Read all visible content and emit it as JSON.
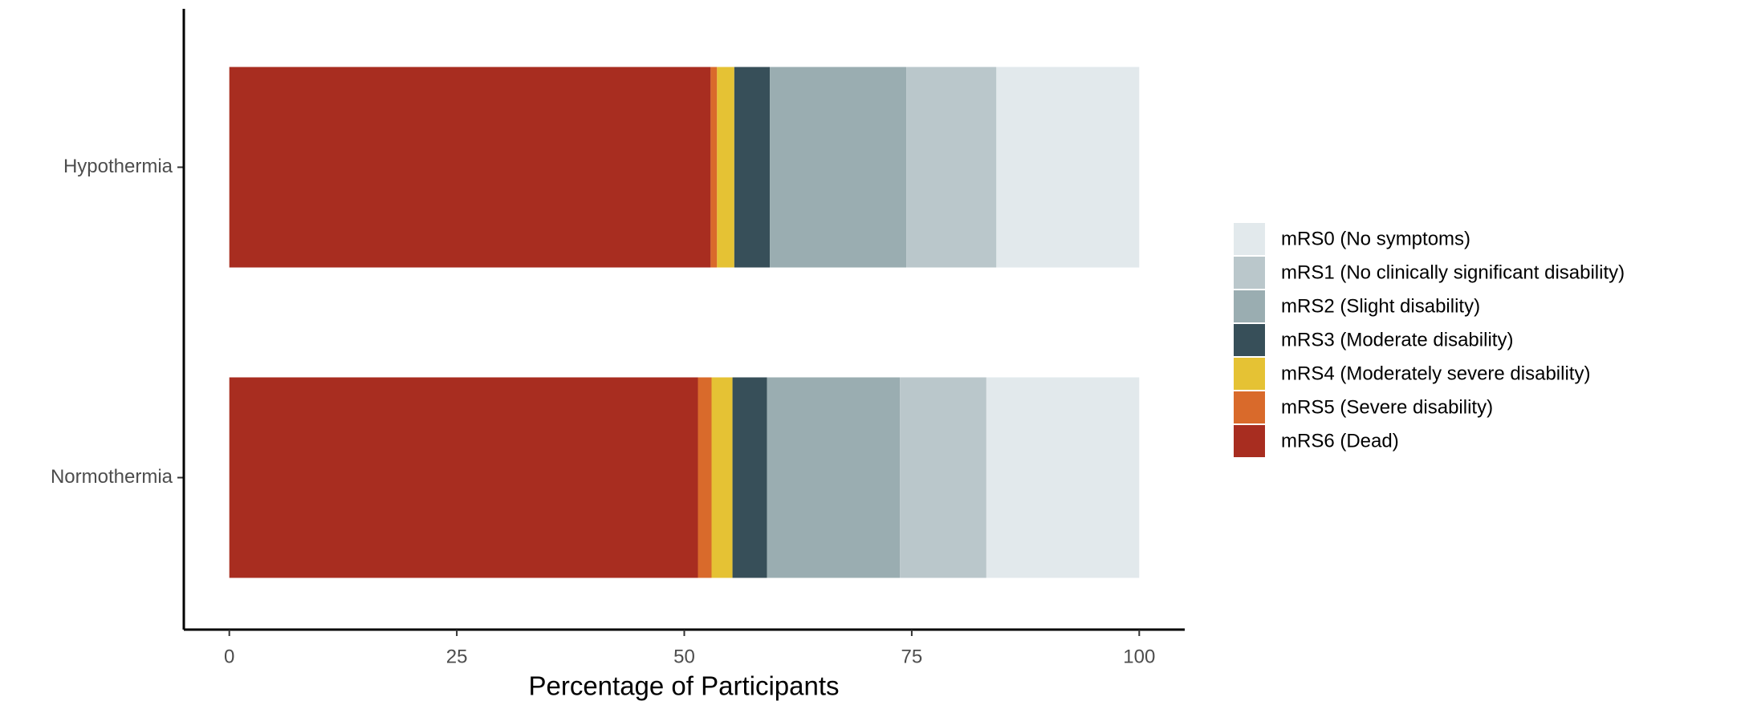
{
  "chart_data": {
    "type": "bar",
    "orientation": "horizontal",
    "stacked": true,
    "xlabel": "Percentage of Participants",
    "categories": [
      "Hypothermia",
      "Normothermia"
    ],
    "series": [
      {
        "name": "mRS0 (No symptoms)",
        "color": "#e2e9ec",
        "values": [
          15.7,
          16.8
        ]
      },
      {
        "name": "mRS1 (No clinically significant disability)",
        "color": "#bac7cb",
        "values": [
          9.9,
          9.5
        ]
      },
      {
        "name": "mRS2 (Slight disability)",
        "color": "#9aadb1",
        "values": [
          15.0,
          14.6
        ]
      },
      {
        "name": "mRS3 (Moderate disability)",
        "color": "#374f59",
        "values": [
          3.9,
          3.8
        ]
      },
      {
        "name": "mRS4 (Moderately severe disability)",
        "color": "#e5c234",
        "values": [
          1.9,
          2.3
        ]
      },
      {
        "name": "mRS5 (Severe disability)",
        "color": "#d96a2b",
        "values": [
          0.7,
          1.5
        ]
      },
      {
        "name": "mRS6 (Dead)",
        "color": "#a82d20",
        "values": [
          52.9,
          51.5
        ]
      }
    ],
    "xlim": [
      -5,
      105
    ],
    "xticks": [
      0,
      25,
      50,
      75,
      100
    ],
    "legend": "right"
  }
}
